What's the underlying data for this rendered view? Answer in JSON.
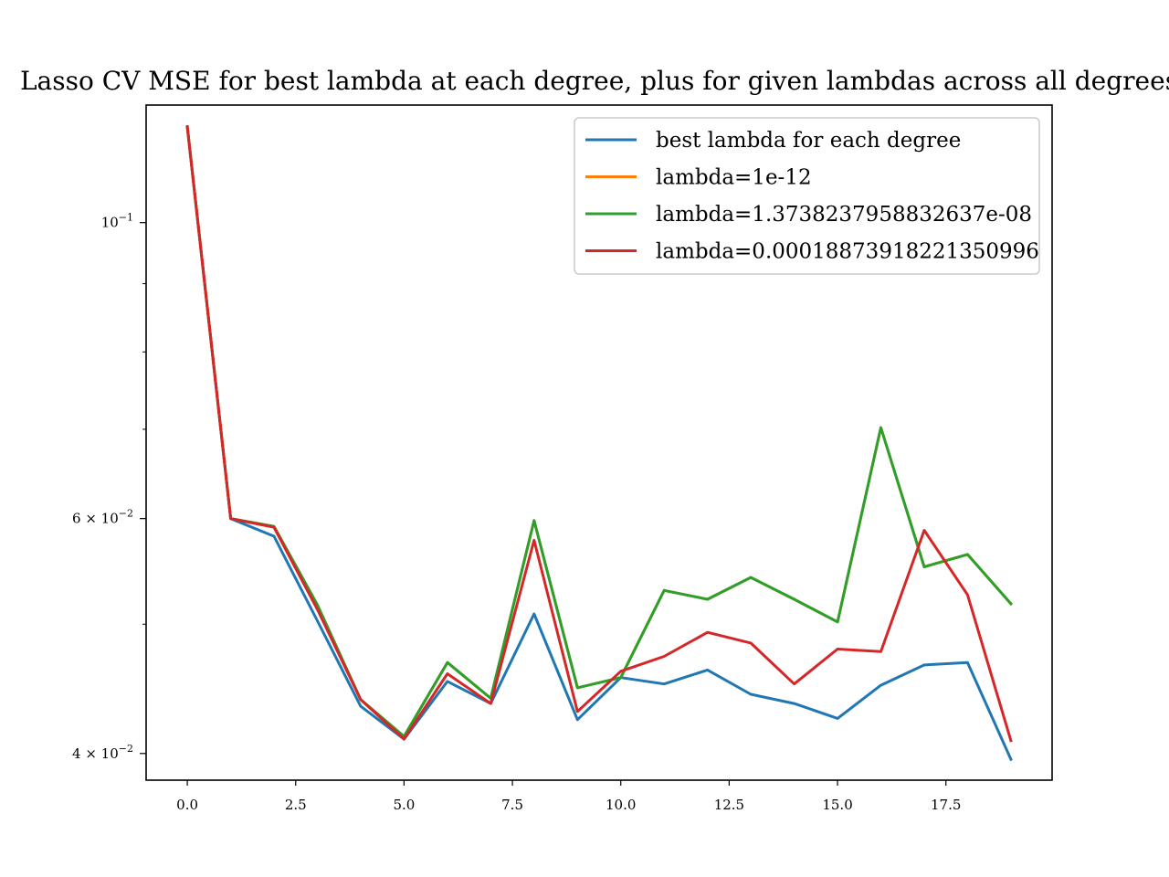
{
  "chart_data": {
    "type": "line",
    "title": "Lasso CV MSE for best lambda at each degree, plus for given lambdas across all degrees",
    "xlabel": "",
    "ylabel": "",
    "yscale": "log",
    "xlim": [
      -0.95,
      19.95
    ],
    "ylim": [
      0.0382,
      0.1225
    ],
    "grid": false,
    "legend_position": "top-right",
    "x": [
      0,
      1,
      2,
      3,
      4,
      5,
      6,
      7,
      8,
      9,
      10,
      11,
      12,
      13,
      14,
      15,
      16,
      17,
      18,
      19
    ],
    "x_ticks": [
      0,
      2.5,
      5,
      7.5,
      10,
      12.5,
      15,
      17.5
    ],
    "x_tick_labels": [
      "0.0",
      "2.5",
      "5.0",
      "7.5",
      "10.0",
      "12.5",
      "15.0",
      "17.5"
    ],
    "y_major_ticks": [
      {
        "value": 0.1,
        "base": "10",
        "exp": "−1"
      },
      {
        "value": 0.06,
        "base": "6 × 10",
        "exp": "−2"
      },
      {
        "value": 0.04,
        "base": "4 × 10",
        "exp": "−2"
      }
    ],
    "y_minor_ticks": [
      0.05,
      0.07,
      0.08,
      0.09
    ],
    "series": [
      {
        "name": "best lambda for each degree",
        "color": "#1f77b4",
        "values": [
          0.118,
          0.06,
          0.0582,
          0.0503,
          0.0434,
          0.041,
          0.0453,
          0.0436,
          0.0509,
          0.0424,
          0.0456,
          0.0451,
          0.0462,
          0.0443,
          0.0436,
          0.0425,
          0.045,
          0.0466,
          0.0468,
          0.0396
        ]
      },
      {
        "name": "lambda=1e-12",
        "color": "#ff7f0e",
        "values": [
          0.118,
          0.06,
          0.0592,
          0.0517,
          0.0439,
          0.0412,
          0.0468,
          0.044,
          0.0598,
          0.0448,
          0.0456,
          0.053,
          0.0522,
          0.0542,
          0.0522,
          0.0502,
          0.0702,
          0.0552,
          0.0564,
          0.0518
        ]
      },
      {
        "name": "lambda=1.3738237958832637e-08",
        "color": "#2ca02c",
        "values": [
          0.118,
          0.06,
          0.0592,
          0.0517,
          0.0439,
          0.0412,
          0.0468,
          0.044,
          0.0598,
          0.0448,
          0.0456,
          0.053,
          0.0522,
          0.0542,
          0.0522,
          0.0502,
          0.0702,
          0.0552,
          0.0564,
          0.0518
        ]
      },
      {
        "name": "lambda=0.00018873918221350996",
        "color": "#d62728",
        "values": [
          0.118,
          0.06,
          0.0591,
          0.0513,
          0.0439,
          0.041,
          0.0459,
          0.0436,
          0.0578,
          0.043,
          0.0461,
          0.0473,
          0.0493,
          0.0484,
          0.0451,
          0.0479,
          0.0477,
          0.0588,
          0.0526,
          0.0409
        ]
      }
    ]
  }
}
